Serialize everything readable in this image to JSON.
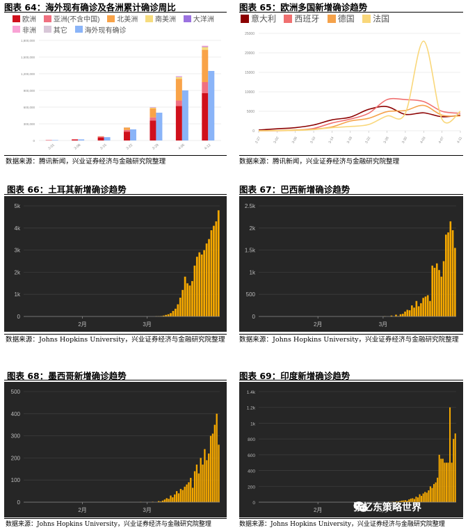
{
  "panels": {
    "p64": {
      "title": "图表 64：海外现有确诊及各洲累计确诊周比",
      "source": "数据来源：腾讯新闻，兴业证券经济与金融研究院整理"
    },
    "p65": {
      "title": "图表 65：欧洲多国新增确诊趋势",
      "source": "数据来源：腾讯新闻，兴业证券经济与金融研究院整理"
    },
    "p66": {
      "title": "图表 66：土耳其新增确诊趋势",
      "source": "数据来源：Johns Hopkins University，兴业证券经济与金融研究院整理"
    },
    "p67": {
      "title": "图表 67：巴西新增确诊趋势",
      "source": "数据来源：Johns Hopkins University，兴业证券经济与金融研究院整理"
    },
    "p68": {
      "title": "图表 68：墨西哥新增确诊趋势",
      "source": "数据来源：Johns Hopkins University，兴业证券经济与金融研究院整理"
    },
    "p69": {
      "title": "图表 69：印度新增确诊趋势",
      "source": "数据来源：Johns Hopkins University，兴业证券经济与金融研究院整理"
    }
  },
  "watermark": {
    "text": "张忆东策略世界",
    "icon": "wechat-icon"
  },
  "chart_data": [
    {
      "id": "c64",
      "type": "bar",
      "legend": [
        "欧洲",
        "亚洲(不含中国)",
        "北美洲",
        "南美洲",
        "大洋洲",
        "非洲",
        "其它",
        "海外现有确诊"
      ],
      "colors": {
        "欧洲": "#d0101c",
        "亚洲(不含中国)": "#f07080",
        "北美洲": "#f9a348",
        "南美洲": "#f6dc7e",
        "大洋洲": "#9b72e0",
        "非洲": "#f9a3d5",
        "其它": "#d8c7d8",
        "海外现有确诊": "#8ab4f8"
      },
      "categories": [
        "3-01",
        "3-08",
        "3-15",
        "3-22",
        "3-29",
        "4-05",
        "4-12"
      ],
      "ylim": [
        0,
        1800000
      ],
      "yticks": [
        "0",
        "300,000",
        "600,000",
        "900,000",
        "1,200,000",
        "1,500,000",
        "1,800,000"
      ],
      "stacked": [
        {
          "name": "欧洲",
          "values": [
            2000,
            15000,
            55000,
            160000,
            360000,
            620000,
            850000
          ]
        },
        {
          "name": "亚洲(不含中国)",
          "values": [
            8000,
            10000,
            15000,
            30000,
            55000,
            100000,
            200000
          ]
        },
        {
          "name": "北美洲",
          "values": [
            200,
            800,
            6000,
            40000,
            160000,
            390000,
            580000
          ]
        },
        {
          "name": "南美洲",
          "values": [
            0,
            100,
            1000,
            5000,
            15000,
            30000,
            50000
          ]
        },
        {
          "name": "大洋洲",
          "values": [
            0,
            100,
            300,
            1500,
            5000,
            7000,
            8000
          ]
        },
        {
          "name": "非洲",
          "values": [
            0,
            100,
            300,
            1500,
            5000,
            9000,
            15000
          ]
        },
        {
          "name": "其它",
          "values": [
            0,
            0,
            700,
            700,
            700,
            700,
            700
          ]
        }
      ],
      "side": {
        "name": "海外现有确诊",
        "values": [
          8000,
          20000,
          60000,
          200000,
          500000,
          900000,
          1250000
        ]
      }
    },
    {
      "id": "c65",
      "type": "line",
      "legend": [
        "意大利",
        "西班牙",
        "德国",
        "法国"
      ],
      "colors": {
        "意大利": "#8b0000",
        "西班牙": "#f07070",
        "德国": "#f5a24a",
        "法国": "#f9d77a"
      },
      "categories": [
        "2-27",
        "3-02",
        "3-06",
        "3-10",
        "3-14",
        "3-18",
        "3-22",
        "3-26",
        "3-30",
        "4-03",
        "4-07",
        "4-11"
      ],
      "ylim": [
        0,
        25000
      ],
      "yticks": [
        "0",
        "5000",
        "10000",
        "15000",
        "20000",
        "25000"
      ],
      "series": [
        {
          "name": "意大利",
          "values": [
            200,
            500,
            800,
            1500,
            2800,
            3500,
            5500,
            6200,
            4200,
            4600,
            3600,
            4000
          ]
        },
        {
          "name": "西班牙",
          "values": [
            0,
            10,
            150,
            600,
            2000,
            3000,
            4500,
            8000,
            8000,
            7500,
            5000,
            4500
          ]
        },
        {
          "name": "德国",
          "values": [
            10,
            50,
            200,
            400,
            1000,
            2500,
            3200,
            4900,
            5200,
            6500,
            4000,
            3800
          ]
        },
        {
          "name": "法国",
          "values": [
            20,
            30,
            100,
            300,
            800,
            1100,
            1600,
            3800,
            4500,
            23000,
            3000,
            5000
          ]
        }
      ]
    },
    {
      "id": "c66",
      "type": "bar",
      "ylim": [
        0,
        5000
      ],
      "yticks": [
        "0",
        "1k",
        "2k",
        "3k",
        "4k",
        "5k"
      ],
      "xlabels": [
        "2月",
        "3月"
      ],
      "values": [
        0,
        0,
        0,
        0,
        0,
        0,
        0,
        0,
        0,
        0,
        0,
        0,
        0,
        0,
        0,
        0,
        0,
        0,
        0,
        0,
        0,
        0,
        0,
        0,
        0,
        0,
        0,
        0,
        0,
        0,
        0,
        0,
        0,
        0,
        0,
        0,
        0,
        0,
        0,
        0,
        0,
        0,
        0,
        0,
        0,
        0,
        0,
        0,
        0,
        0,
        0,
        0,
        0,
        0,
        0,
        5,
        10,
        20,
        40,
        70,
        100,
        150,
        250,
        350,
        550,
        850,
        1200,
        1800,
        1500,
        1400,
        1600,
        2300,
        2700,
        2900,
        2800,
        3000,
        3300,
        3500,
        3900,
        4100,
        4300,
        4800
      ]
    },
    {
      "id": "c67",
      "type": "bar",
      "ylim": [
        0,
        2500
      ],
      "yticks": [
        "0",
        "500",
        "1k",
        "1.5k",
        "2k",
        "2.5k"
      ],
      "xlabels": [
        "2月",
        "3月"
      ],
      "values": [
        0,
        0,
        0,
        0,
        0,
        0,
        0,
        0,
        0,
        0,
        0,
        0,
        0,
        0,
        0,
        0,
        0,
        0,
        0,
        0,
        0,
        0,
        0,
        0,
        0,
        0,
        0,
        0,
        0,
        0,
        0,
        0,
        0,
        0,
        0,
        0,
        0,
        0,
        0,
        0,
        0,
        0,
        0,
        0,
        0,
        0,
        0,
        0,
        0,
        0,
        0,
        0,
        0,
        0,
        0,
        5,
        0,
        0,
        20,
        0,
        40,
        10,
        50,
        60,
        110,
        150,
        140,
        250,
        200,
        350,
        230,
        300,
        420,
        450,
        480,
        350,
        1150,
        1100,
        1200,
        1050,
        900,
        1250,
        1850,
        1900,
        2150,
        1950,
        1550
      ]
    },
    {
      "id": "c68",
      "type": "bar",
      "ylim": [
        0,
        500
      ],
      "yticks": [
        "0",
        "100",
        "200",
        "300",
        "400",
        "500"
      ],
      "xlabels": [
        "2月",
        "3月"
      ],
      "values": [
        0,
        0,
        0,
        0,
        0,
        0,
        0,
        0,
        0,
        0,
        0,
        0,
        0,
        0,
        0,
        0,
        0,
        0,
        0,
        0,
        0,
        0,
        0,
        0,
        0,
        0,
        0,
        0,
        0,
        0,
        0,
        0,
        0,
        0,
        0,
        0,
        0,
        0,
        0,
        0,
        0,
        0,
        0,
        0,
        0,
        0,
        0,
        0,
        0,
        0,
        0,
        0,
        0,
        0,
        0,
        0,
        0,
        0,
        1,
        0,
        0,
        0,
        0,
        0,
        2,
        0,
        0,
        5,
        3,
        7,
        12,
        18,
        15,
        30,
        22,
        35,
        50,
        40,
        60,
        55,
        70,
        80,
        90,
        110,
        65,
        140,
        170,
        130,
        200,
        170,
        240,
        190,
        220,
        300,
        310,
        350,
        400,
        260
      ]
    },
    {
      "id": "c69",
      "type": "bar",
      "ylim": [
        0,
        1400
      ],
      "yticks": [
        "0",
        "200",
        "400",
        "600",
        "800",
        "1k",
        "1.2k",
        "1.4k"
      ],
      "xlabels": [
        "2月",
        "3月"
      ],
      "values": [
        0,
        0,
        0,
        0,
        0,
        0,
        0,
        0,
        0,
        0,
        0,
        0,
        0,
        0,
        0,
        0,
        0,
        0,
        0,
        0,
        0,
        0,
        0,
        0,
        0,
        0,
        0,
        0,
        0,
        0,
        0,
        0,
        0,
        0,
        0,
        0,
        0,
        0,
        0,
        0,
        0,
        0,
        0,
        0,
        0,
        0,
        0,
        0,
        0,
        0,
        0,
        0,
        0,
        0,
        0,
        0,
        0,
        0,
        0,
        0,
        0,
        0,
        0,
        0,
        0,
        0,
        0,
        0,
        0,
        0,
        0,
        0,
        0,
        5,
        2,
        6,
        3,
        10,
        8,
        15,
        20,
        22,
        25,
        18,
        35,
        45,
        50,
        40,
        70,
        60,
        100,
        80,
        110,
        130,
        120,
        150,
        200,
        180,
        230,
        250,
        310,
        600,
        550,
        550,
        500,
        500,
        500,
        1200,
        500,
        800,
        870
      ]
    }
  ]
}
